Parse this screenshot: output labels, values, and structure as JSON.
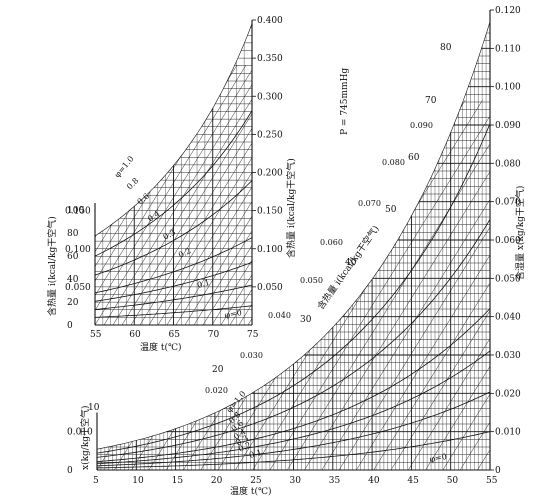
{
  "chart_data": [
    {
      "type": "line",
      "name": "main",
      "pressure_label": "P = 745mmHg",
      "xlabel": "温度 t(℃)",
      "ylabel_left": "x(kg/kg干空气)",
      "ylabel_right": "含湿量 x(kg/kg干空气)",
      "enthalpy_axis_label": "含热量 i(kcal/kg干空气)",
      "xlim": [
        5,
        55
      ],
      "x_ticks": [
        5,
        10,
        15,
        20,
        25,
        30,
        35,
        40,
        45,
        50,
        55
      ],
      "ylim": [
        0,
        0.12
      ],
      "y_ticks_right": [
        0.0,
        0.01,
        0.02,
        0.03,
        0.04,
        0.05,
        0.06,
        0.07,
        0.08,
        0.09,
        0.1,
        0.11,
        0.12
      ],
      "y_ticks_left": [
        0,
        0.01
      ],
      "enthalpy_labels": [
        10,
        20,
        30,
        40,
        50,
        60,
        70,
        80
      ],
      "x_labels_on_curve": [
        0.02,
        0.03,
        0.04,
        0.05,
        0.06,
        0.07,
        0.08,
        0.09
      ],
      "rh_labels": [
        "φ=1.0",
        "0.8",
        "0.6",
        "0.4",
        "0.3",
        "0.2",
        "0.1",
        "φ=0"
      ],
      "rh_values": [
        1.0,
        0.8,
        0.6,
        0.4,
        0.3,
        0.2,
        0.1,
        0
      ]
    },
    {
      "type": "line",
      "name": "inset",
      "xlabel": "温度 t(℃)",
      "ylabel": "含热量 i(kcal/kg干空气)",
      "ylabel_right": "含热量 i(kcal/kg干空气)",
      "xlim": [
        55,
        75
      ],
      "x_ticks": [
        55,
        60,
        65,
        70,
        75
      ],
      "ylim": [
        0,
        0.4
      ],
      "y_ticks_right": [
        0.05,
        0.1,
        0.15,
        0.2,
        0.25,
        0.3,
        0.35,
        0.4
      ],
      "y_ticks_left": [
        0.05,
        0.1,
        0.15
      ],
      "enthalpy_ticks_left": [
        0,
        20,
        40,
        60,
        80,
        100
      ],
      "rh_labels": [
        "φ=1.0",
        "0.8",
        "0.6",
        "0.4",
        "0.3",
        "0.2",
        "0.1",
        "φ=0"
      ],
      "rh_values": [
        1.0,
        0.8,
        0.6,
        0.4,
        0.3,
        0.2,
        0.1,
        0
      ]
    }
  ]
}
